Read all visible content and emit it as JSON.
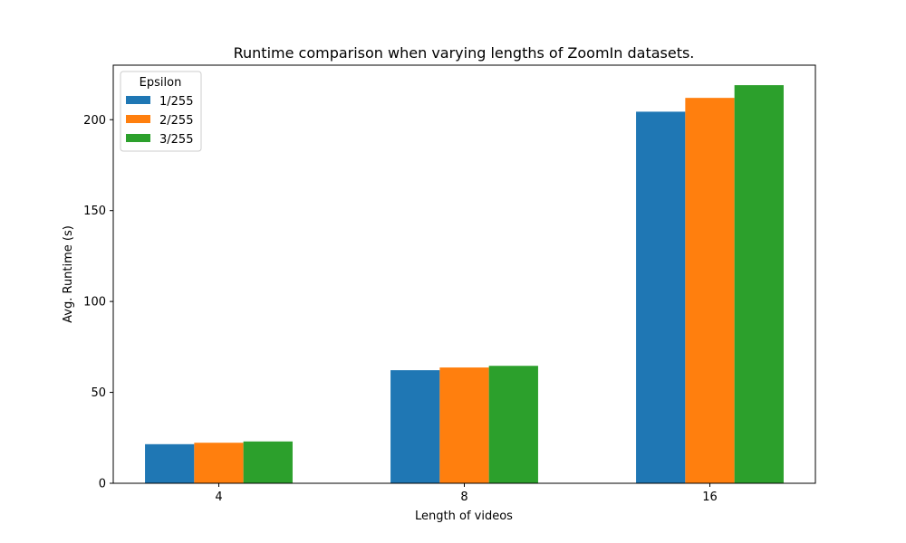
{
  "chart_data": {
    "type": "bar",
    "title": "Runtime comparison when varying lengths of ZoomIn datasets.",
    "xlabel": "Length of videos",
    "ylabel": "Avg. Runtime (s)",
    "categories": [
      "4",
      "8",
      "16"
    ],
    "series": [
      {
        "name": "1/255",
        "color": "#1f77b4",
        "values": [
          21.5,
          62.2,
          204.4
        ]
      },
      {
        "name": "2/255",
        "color": "#ff7f0e",
        "values": [
          22.3,
          63.7,
          212.0
        ]
      },
      {
        "name": "3/255",
        "color": "#2ca02c",
        "values": [
          23.0,
          64.6,
          219.0
        ]
      }
    ],
    "ylim": [
      0,
      230
    ],
    "yticks": [
      0,
      50,
      100,
      150,
      200
    ],
    "legend": {
      "title": "Epsilon",
      "placement": "top-left"
    },
    "grid": false
  }
}
